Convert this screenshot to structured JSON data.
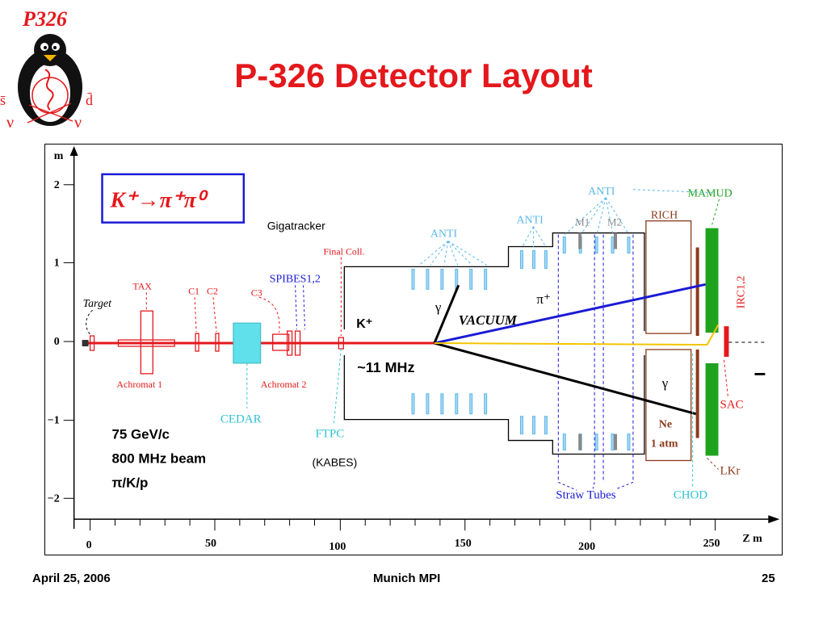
{
  "logo": {
    "label": "P326",
    "left_symbol": "s̄",
    "right_symbol": "d̄",
    "nu_left": "ν",
    "nu_right": "ν"
  },
  "title": "P-326 Detector Layout",
  "diagram": {
    "decay": "K⁺→π⁺π⁰",
    "y_axis": {
      "unit": "m",
      "ticks": [
        "2",
        "1",
        "0",
        "−1",
        "−2"
      ]
    },
    "x_axis": {
      "unit": "Z  m",
      "ticks": [
        "0",
        "50",
        "100",
        "150",
        "200",
        "250"
      ]
    },
    "labels": {
      "target": "Target",
      "tax": "TAX",
      "c1": "C1",
      "c2": "C2",
      "c3": "C3",
      "achromat1": "Achromat 1",
      "achromat2": "Achromat 2",
      "cedar": "CEDAR",
      "gigatracker": "Gigatracker",
      "final_coll": "Final Coll.",
      "spibes": "SPIBES1,2",
      "ftpc": "FTPC",
      "kabes": "(KABES)",
      "anti1": "ANTI",
      "anti2": "ANTI",
      "anti3": "ANTI",
      "m1": "M1",
      "m2": "M2",
      "rich": "RICH",
      "mamud": "MAMUD",
      "irc": "IRC1,2",
      "sac": "SAC",
      "lkr": "LKr",
      "chod": "CHOD",
      "straw": "Straw Tubes",
      "vacuum": "VACUUM",
      "kplus": "K⁺",
      "gamma1": "γ",
      "gamma2": "γ",
      "piplus": "π⁺",
      "freq": "~11 MHz",
      "ne": "Ne",
      "atm": "1 atm",
      "minus": "−",
      "beam1": "75 GeV/c",
      "beam2": "800 MHz beam",
      "beam3": "π/K/p"
    }
  },
  "footer": {
    "date": "April 25, 2006",
    "venue": "Munich MPI",
    "page": "25"
  },
  "colors": {
    "title": "#e4181c",
    "beam": "#e4181c",
    "blue": "#1a1ad6",
    "light_blue": "#5bb8e8",
    "green": "#1fa31f",
    "brown": "#8b3a1a",
    "yellow": "#f2c500",
    "cyan": "#5fe0ea"
  }
}
